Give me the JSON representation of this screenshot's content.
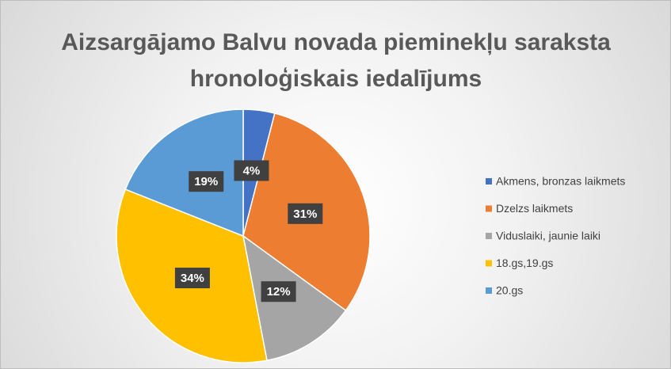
{
  "chart_data": {
    "type": "pie",
    "title": "Aizsargājamo Balvu novada pieminekļu saraksta hronoloģiskais iedalījums",
    "categories": [
      "Akmens, bronzas laikmets",
      "Dzelzs laikmets",
      "Viduslaiki, jaunie laiki",
      "18.gs,19.gs",
      "20.gs"
    ],
    "values": [
      4,
      31,
      12,
      34,
      19
    ],
    "value_labels": [
      "4%",
      "31%",
      "12%",
      "34%",
      "19%"
    ],
    "colors": [
      "#4472c4",
      "#ed7d31",
      "#a5a5a5",
      "#ffc000",
      "#5b9bd5"
    ],
    "legend": "right"
  }
}
